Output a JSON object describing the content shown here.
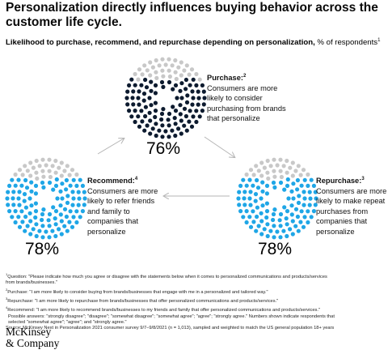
{
  "title_line1": "Personalization directly influences buying behavior across the",
  "title_line2": "customer life cycle.",
  "subtitle": {
    "bold": "Likelihood to purchase, recommend, and repurchase depending on personalization,",
    "unit": " % of respondents",
    "footnote_mark": "1"
  },
  "chart_data": {
    "type": "dot-matrix",
    "unit": "% of respondents",
    "items": [
      {
        "name": "Purchase",
        "footnote": "2",
        "value": 76,
        "value_label": "76%",
        "description_lines": [
          "Consumers are more",
          "likely to consider",
          "purchasing from brands",
          "that personalize"
        ],
        "color": "#0d1b2f"
      },
      {
        "name": "Repurchase",
        "footnote": "3",
        "value": 78,
        "value_label": "78%",
        "description_lines": [
          "Consumers are more",
          "likely to make repeat",
          "purchases from",
          "companies that",
          "personalize"
        ],
        "color": "#1fa6e6"
      },
      {
        "name": "Recommend",
        "footnote": "4",
        "value": 78,
        "value_label": "78%",
        "description_lines": [
          "Consumers are more",
          "likely to refer friends",
          "and family to",
          "companies that",
          "personalize"
        ],
        "color": "#1fa6e6"
      }
    ],
    "remainder_color": "#c8c8c8",
    "flow": "Purchase → Repurchase → Recommend → Purchase"
  },
  "labels": {
    "purchase_head": "Purchase:",
    "repurchase_head": "Repurchase:",
    "recommend_head": "Recommend:"
  },
  "notes": [
    {
      "mark": "1",
      "text": "Question: \"Please indicate how much you agree or disagree with the statements below when it comes to personalized communications and products/services"
    },
    {
      "mark": "",
      "text": "from brands/businesses.\""
    },
    {
      "mark": "2",
      "text": "Purchase: \"I am more likely to consider buying from brands/businesses that engage with me in a personalized and tailored way.\""
    },
    {
      "mark": "3",
      "text": "Repurchase: \"I am more likely to repurchase from brands/businesses that offer personalized communications and products/services.\""
    },
    {
      "mark": "4",
      "text": "Recommend: \"I am more likely to recommend brands/businesses to my friends and family that offer personalized communications and products/services.\""
    },
    {
      "mark": "",
      "text": "Possible answers: \"strongly disagree\"; \"disagree\"; \"somewhat disagree\"; \"somewhat agree\"; \"agree\"; \"strongly agree.\" Numbers shown indicate respondents that"
    },
    {
      "mark": "",
      "text": "selected \"somewhat agree\"; \"agree\"; and \"strongly agree.\""
    },
    {
      "mark": "",
      "text": "Source: McKinsey Next in Personalization 2021 consumer survey 9/7–9/8/2021 (n = 1,013), sampled and weighted to match the US general population 18+ years"
    }
  ],
  "logo_line1": "McKinsey",
  "logo_line2": "& Company"
}
